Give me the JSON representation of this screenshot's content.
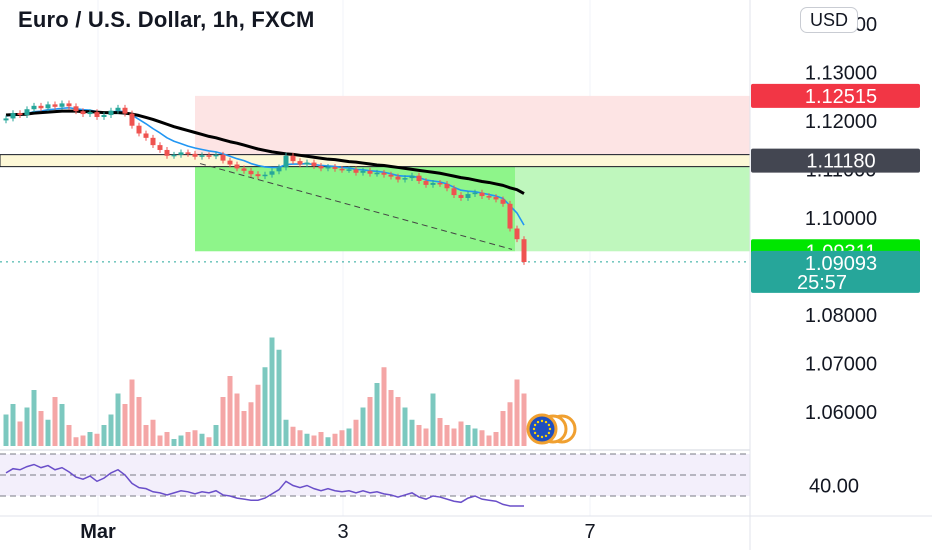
{
  "header": {
    "title": "Euro / U.S. Dollar, 1h, FXCM",
    "currency": "USD"
  },
  "colors": {
    "up": "#26a69a",
    "down": "#ef5350",
    "target_zone": "#8ef58a",
    "stop_zone": "#fde4e4",
    "ema_long": "#000000",
    "ema_short": "#2196f3",
    "rsi": "#6a4fc9",
    "stop_tag": "#f23645",
    "level_tag": "#434651",
    "target_tag": "#00e600",
    "price_tag": "#26a69a"
  },
  "price_axis": {
    "ticks": [
      {
        "value": 1.14,
        "label": "1.14000"
      },
      {
        "value": 1.13,
        "label": "1.13000"
      },
      {
        "value": 1.12,
        "label": "1.12000"
      },
      {
        "value": 1.11,
        "label": "1.11000"
      },
      {
        "value": 1.1,
        "label": "1.10000"
      },
      {
        "value": 1.08,
        "label": "1.08000"
      },
      {
        "value": 1.07,
        "label": "1.07000"
      },
      {
        "value": 1.06,
        "label": "1.06000"
      }
    ],
    "tags": [
      {
        "name": "stop-price-tag",
        "value": 1.12515,
        "label": "1.12515",
        "color": "#f23645",
        "text_color": "#ffffff"
      },
      {
        "name": "level-price-tag",
        "value": 1.1118,
        "label": "1.11180",
        "color": "#434651",
        "text_color": "#ffffff"
      },
      {
        "name": "target-price-tag",
        "value": 1.09311,
        "label": "1.09311",
        "color": "#00e600",
        "text_color": "#131722"
      },
      {
        "name": "last-price-tag",
        "value": 1.09093,
        "label": "1.09093",
        "sub": "25:57",
        "color": "#26a69a",
        "text_color": "#ffffff"
      }
    ]
  },
  "rsi_axis": {
    "label": "40.00"
  },
  "time_axis": {
    "labels": [
      "Mar",
      "3",
      "7"
    ]
  },
  "chart_data": {
    "type": "candlestick",
    "symbol": "EURUSD",
    "interval": "1h",
    "source": "FXCM",
    "ylim": [
      1.058,
      1.142
    ],
    "position": {
      "type": "short",
      "entry": 1.1118,
      "stop": 1.12515,
      "target": 1.09311
    },
    "horizontal_level": 1.1118,
    "last_price": 1.09093,
    "countdown": "25:57",
    "close": [
      1.1205,
      1.1216,
      1.1212,
      1.1224,
      1.1231,
      1.1226,
      1.1234,
      1.1229,
      1.1236,
      1.123,
      1.122,
      1.1214,
      1.1218,
      1.1208,
      1.1212,
      1.1221,
      1.1227,
      1.1215,
      1.119,
      1.1174,
      1.1165,
      1.115,
      1.114,
      1.1128,
      1.113,
      1.1135,
      1.1132,
      1.1126,
      1.1129,
      1.1127,
      1.113,
      1.1118,
      1.111,
      1.1102,
      1.1097,
      1.109,
      1.1086,
      1.1089,
      1.1096,
      1.1104,
      1.1128,
      1.1117,
      1.111,
      1.1114,
      1.1107,
      1.1102,
      1.1105,
      1.1101,
      1.1099,
      1.11,
      1.1093,
      1.1097,
      1.1091,
      1.1093,
      1.1089,
      1.1085,
      1.1079,
      1.1082,
      1.1087,
      1.1076,
      1.1068,
      1.1072,
      1.107,
      1.1061,
      1.1047,
      1.1041,
      1.1049,
      1.1052,
      1.1045,
      1.1043,
      1.1038,
      1.1029,
      1.0978,
      1.0956,
      1.0909
    ],
    "volume": [
      18,
      24,
      14,
      22,
      32,
      20,
      15,
      28,
      24,
      12,
      5,
      6,
      8,
      7,
      12,
      18,
      30,
      24,
      38,
      28,
      12,
      15,
      6,
      8,
      4,
      6,
      8,
      9,
      7,
      5,
      12,
      28,
      40,
      30,
      20,
      25,
      35,
      45,
      62,
      55,
      15,
      11,
      9,
      7,
      6,
      8,
      5,
      7,
      9,
      10,
      15,
      22,
      28,
      36,
      45,
      32,
      28,
      22,
      15,
      12,
      10,
      30,
      16,
      12,
      10,
      14,
      12,
      10,
      9,
      6,
      8,
      20,
      25,
      38,
      30
    ],
    "ema_long": [
      1.1212,
      1.1213,
      1.1213,
      1.1214,
      1.1216,
      1.1217,
      1.1218,
      1.1219,
      1.122,
      1.122,
      1.122,
      1.1219,
      1.1219,
      1.1218,
      1.1217,
      1.1217,
      1.1217,
      1.1216,
      1.1214,
      1.1211,
      1.1207,
      1.1203,
      1.1198,
      1.1193,
      1.1188,
      1.1184,
      1.118,
      1.1176,
      1.1172,
      1.1168,
      1.1165,
      1.1161,
      1.1157,
      1.1154,
      1.115,
      1.1146,
      1.1142,
      1.1139,
      1.1136,
      1.1134,
      1.1132,
      1.1131,
      1.1129,
      1.1127,
      1.1125,
      1.1123,
      1.1121,
      1.112,
      1.1118,
      1.1116,
      1.1115,
      1.1113,
      1.1111,
      1.1109,
      1.1108,
      1.1106,
      1.1104,
      1.1102,
      1.11,
      1.1098,
      1.1096,
      1.1094,
      1.1092,
      1.1089,
      1.1086,
      1.1083,
      1.1081,
      1.1078,
      1.1075,
      1.1073,
      1.107,
      1.1067,
      1.1062,
      1.1058,
      1.105
    ],
    "ema_short": [
      1.121,
      1.1212,
      1.1212,
      1.1215,
      1.1219,
      1.122,
      1.1223,
      1.1224,
      1.1226,
      1.1227,
      1.1225,
      1.1223,
      1.1222,
      1.1219,
      1.1217,
      1.1218,
      1.122,
      1.1219,
      1.1212,
      1.1203,
      1.1194,
      1.1184,
      1.1175,
      1.1165,
      1.1158,
      1.1153,
      1.1148,
      1.1144,
      1.1141,
      1.1138,
      1.1136,
      1.1132,
      1.1127,
      1.1122,
      1.1118,
      1.1112,
      1.1108,
      1.1105,
      1.1104,
      1.1104,
      1.111,
      1.1111,
      1.1111,
      1.1112,
      1.111,
      1.1108,
      1.1107,
      1.1106,
      1.1104,
      1.1103,
      1.11,
      1.1099,
      1.1097,
      1.1096,
      1.1094,
      1.1091,
      1.1087,
      1.1086,
      1.1086,
      1.1083,
      1.1078,
      1.1076,
      1.1074,
      1.107,
      1.1063,
      1.1057,
      1.1055,
      1.1054,
      1.1051,
      1.1048,
      1.1045,
      1.104,
      1.1025,
      1.101,
      1.0985
    ],
    "rsi": [
      52,
      56,
      55,
      58,
      60,
      57,
      59,
      55,
      57,
      53,
      48,
      46,
      49,
      44,
      47,
      52,
      55,
      50,
      42,
      38,
      37,
      34,
      33,
      31,
      33,
      35,
      34,
      32,
      34,
      33,
      35,
      31,
      30,
      28,
      27,
      26,
      26,
      28,
      32,
      36,
      44,
      40,
      38,
      40,
      37,
      35,
      37,
      35,
      34,
      35,
      33,
      35,
      33,
      34,
      32,
      31,
      29,
      31,
      33,
      29,
      27,
      30,
      29,
      27,
      25,
      24,
      28,
      30,
      27,
      26,
      25,
      22,
      16,
      14,
      12
    ]
  }
}
